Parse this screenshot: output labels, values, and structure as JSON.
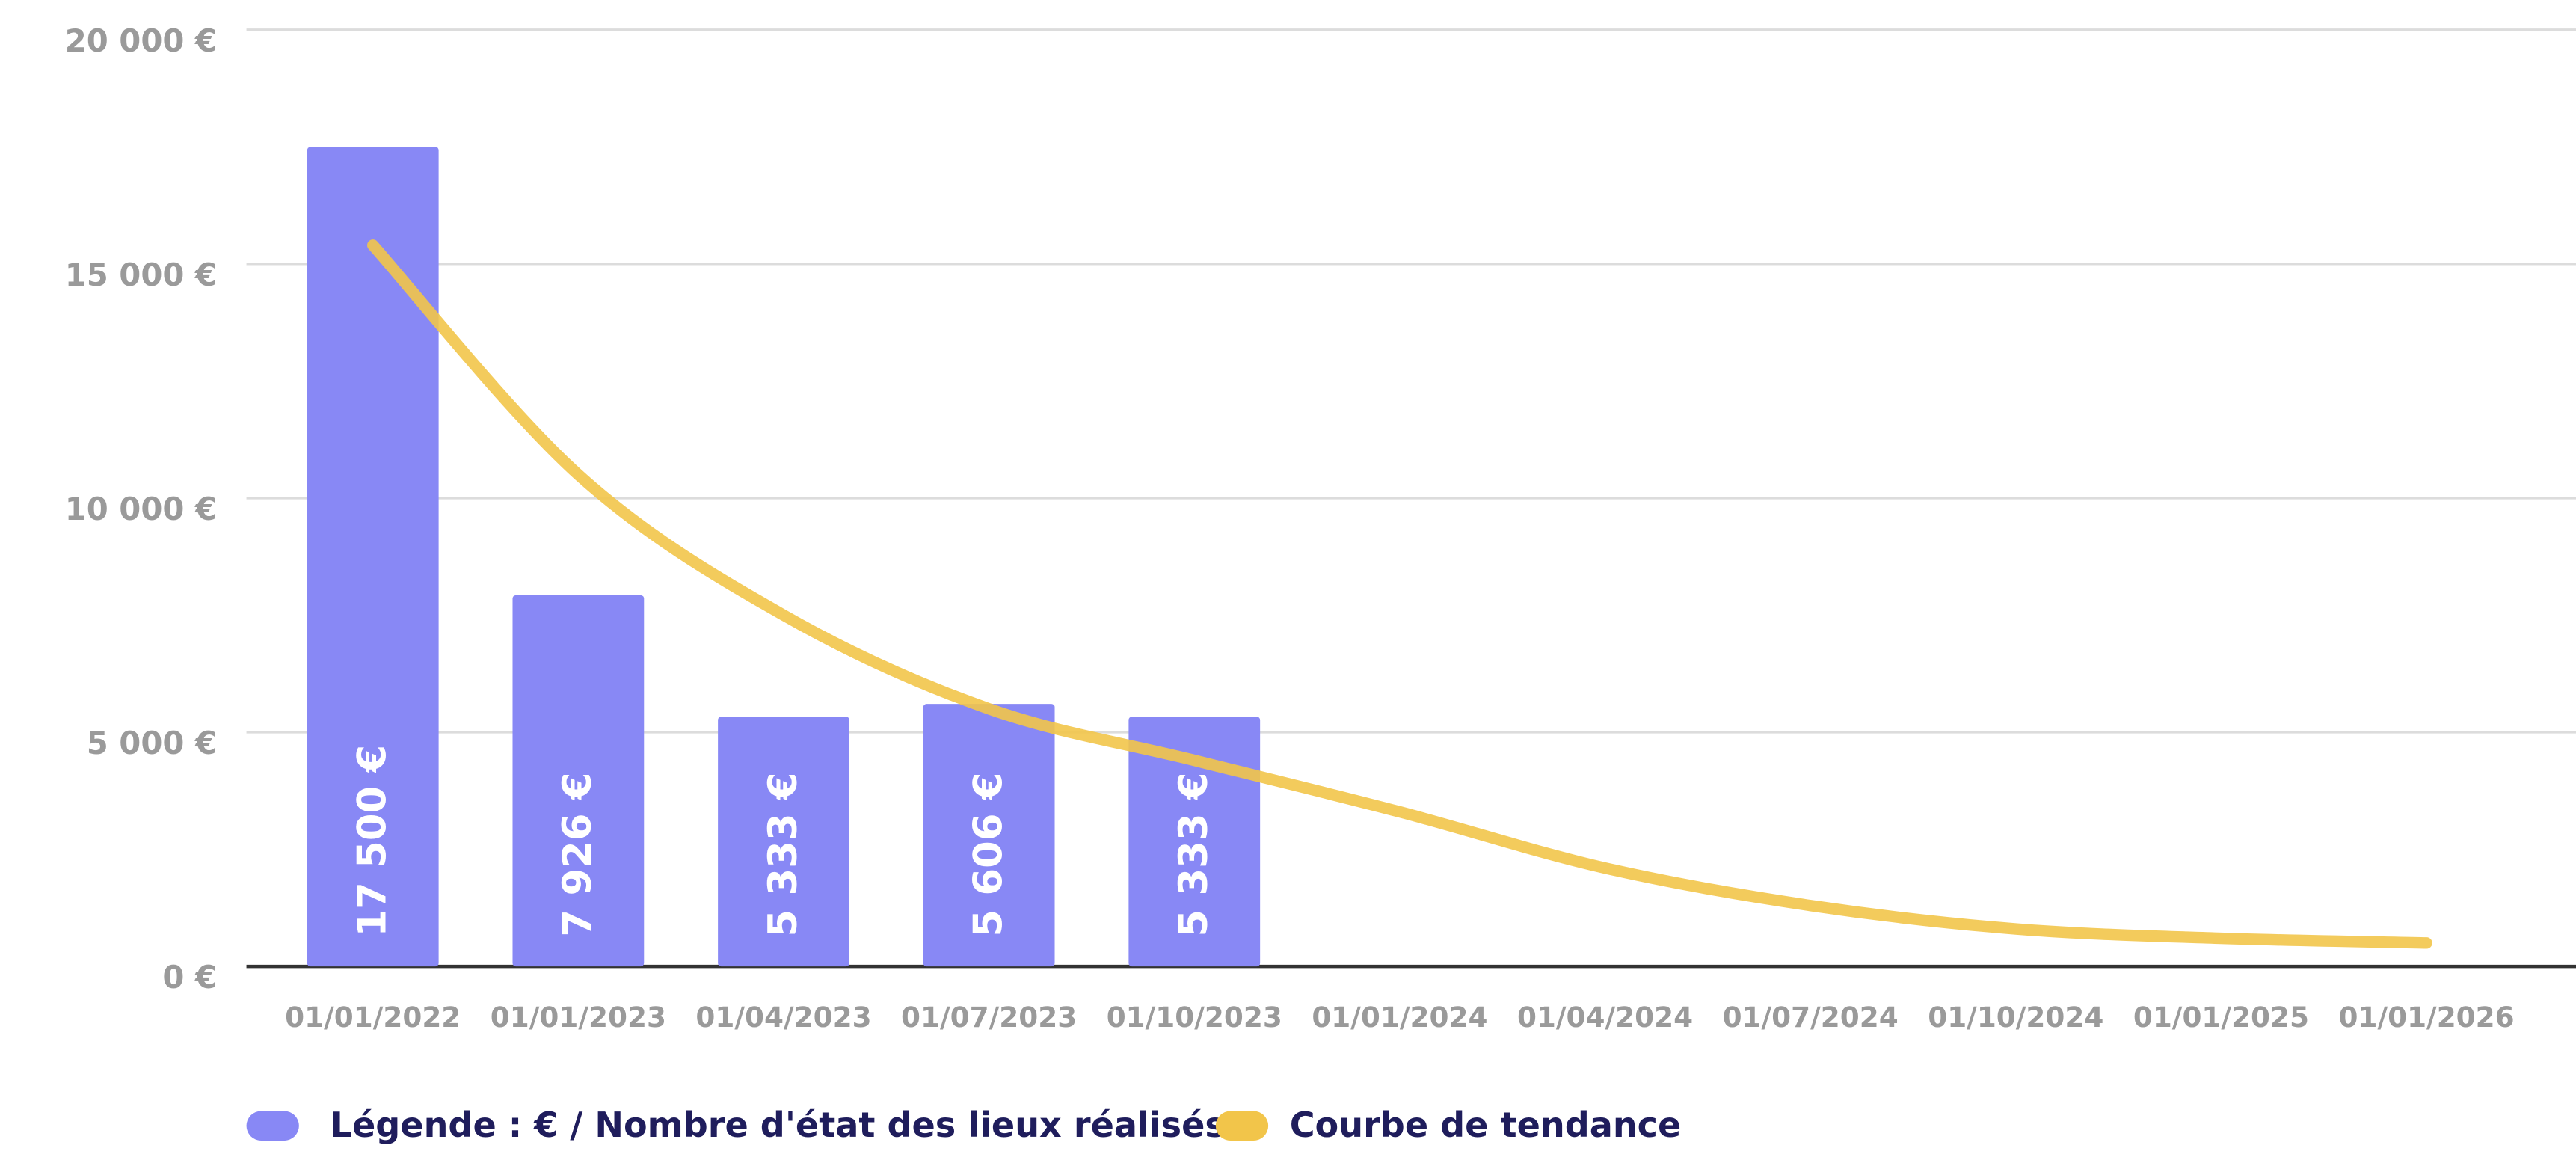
{
  "chart_data": {
    "type": "bar",
    "categories": [
      "01/01/2022",
      "01/01/2023",
      "01/04/2023",
      "01/07/2023",
      "01/10/2023",
      "01/01/2024",
      "01/04/2024",
      "01/07/2024",
      "01/10/2024",
      "01/01/2025",
      "01/01/2026"
    ],
    "series": [
      {
        "name": "Légende : € / Nombre d'état des lieux réalisés",
        "type": "bar",
        "color": "#8888f5",
        "values": [
          17500,
          7926,
          5333,
          5606,
          5333,
          null,
          null,
          null,
          null,
          null,
          null
        ],
        "value_labels": [
          "17 500 €",
          "7 926 €",
          "5 333 €",
          "5 606 €",
          "5 333 €",
          null,
          null,
          null,
          null,
          null,
          null
        ]
      },
      {
        "name": "Courbe de tendance",
        "type": "line",
        "color": "#f2c54a",
        "values": [
          15400,
          10500,
          7500,
          5500,
          4400,
          3300,
          2100,
          1300,
          800,
          600,
          500
        ]
      }
    ],
    "ylim": [
      0,
      20000
    ],
    "yticks": [
      {
        "value": 0,
        "label": "0 €"
      },
      {
        "value": 5000,
        "label": "5 000 €"
      },
      {
        "value": 10000,
        "label": "10 000 €"
      },
      {
        "value": 15000,
        "label": "15 000 €"
      },
      {
        "value": 20000,
        "label": "20 000 €"
      }
    ],
    "grid": true
  }
}
